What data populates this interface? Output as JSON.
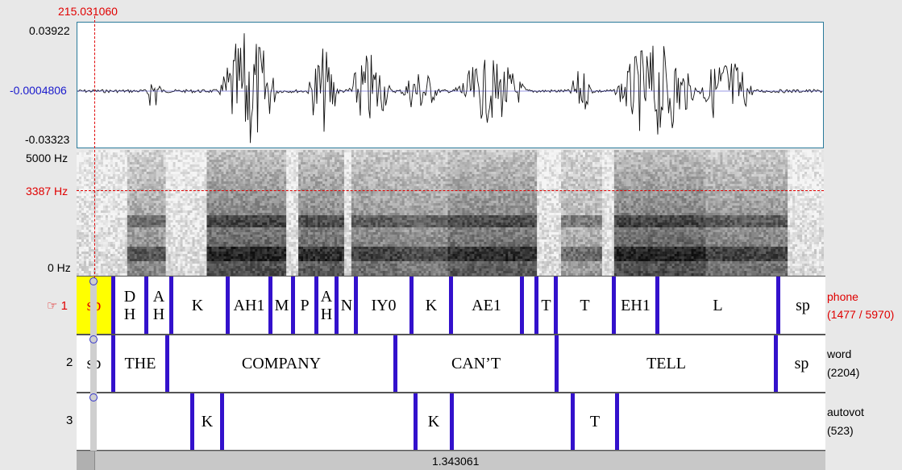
{
  "cursor_time": "215.031060",
  "waveform": {
    "max_label": "0.03922",
    "zero_label": "-0.0004806",
    "min_label": "-0.03323"
  },
  "spectrogram": {
    "top_label": "5000 Hz",
    "cursor_label": "3387 Hz",
    "bottom_label": "0 Hz"
  },
  "tiers": [
    {
      "number": "1",
      "pointer_icon": "☞",
      "name": "phone",
      "count": "(1477 / 5970)",
      "segments": [
        "sp",
        "D\nH",
        "A\nH",
        "K",
        "AH1",
        "M",
        "P",
        "A\nH",
        "N",
        "IY0",
        "K",
        "AE1",
        "",
        "T",
        "T",
        "EH1",
        "L",
        "sp"
      ]
    },
    {
      "number": "2",
      "name": "word",
      "count": "(2204)",
      "segments": [
        "sp",
        "THE",
        "COMPANY",
        "CAN’T",
        "TELL",
        "sp"
      ]
    },
    {
      "number": "3",
      "name": "autovot",
      "count": "(523)",
      "segments": [
        "",
        "K",
        "",
        "K",
        "",
        "T",
        ""
      ]
    }
  ],
  "selection_duration": "1.343061",
  "colors": {
    "boundary": "#3311cc",
    "selected": "#ffff00",
    "cursor": "#e00000"
  }
}
